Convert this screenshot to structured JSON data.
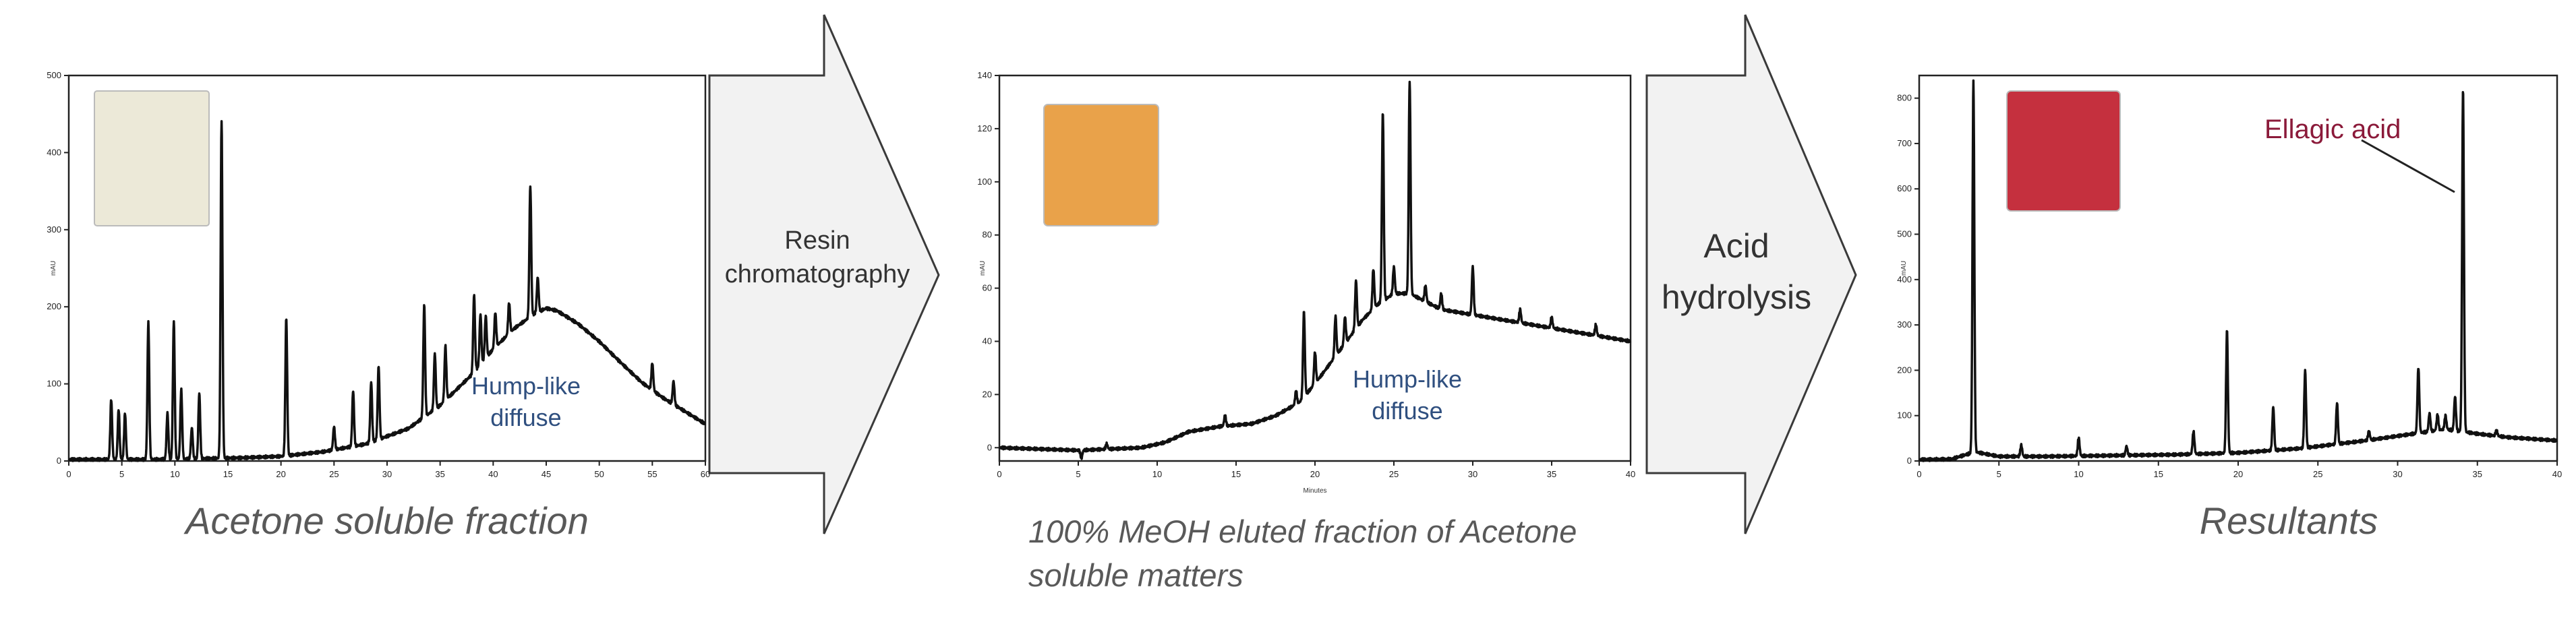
{
  "arrows": [
    {
      "label_lines": [
        "Resin",
        "chromatography"
      ]
    },
    {
      "label_lines": [
        "Acid",
        "hydrolysis"
      ]
    }
  ],
  "colors": {
    "trace": "#111111",
    "annotation_blue": "#2f4f7f",
    "annotation_red": "#8b1a3a",
    "caption": "#595959",
    "arrow_fill": "#f2f2f2",
    "arrow_stroke": "#3a3a3a"
  },
  "panels": [
    {
      "caption_lines": [
        "Acetone soluble fraction"
      ],
      "ylabel": "mAU",
      "xlabel": "",
      "annotation_lines": [
        "Hump-like",
        "diffuse"
      ],
      "annotation_color": "annotation_blue",
      "thumbnail_color": "#ece9d8",
      "chart_data": {
        "type": "line",
        "xlim": [
          0,
          60
        ],
        "ylim": [
          0,
          500
        ],
        "xticks": [
          0,
          5,
          10,
          15,
          20,
          25,
          30,
          35,
          40,
          45,
          50,
          55,
          60
        ],
        "yticks": [
          0,
          100,
          200,
          300,
          400,
          500
        ],
        "baseline": [
          [
            0,
            2
          ],
          [
            8,
            2
          ],
          [
            12,
            3
          ],
          [
            16,
            4
          ],
          [
            20,
            6
          ],
          [
            24,
            12
          ],
          [
            28,
            22
          ],
          [
            32,
            42
          ],
          [
            35,
            72
          ],
          [
            38,
            112
          ],
          [
            40,
            145
          ],
          [
            42,
            172
          ],
          [
            44,
            192
          ],
          [
            45,
            198
          ],
          [
            46,
            195
          ],
          [
            48,
            178
          ],
          [
            50,
            155
          ],
          [
            52,
            128
          ],
          [
            54,
            102
          ],
          [
            56,
            82
          ],
          [
            58,
            65
          ],
          [
            60,
            48
          ]
        ],
        "peaks": [
          [
            4,
            78
          ],
          [
            4.7,
            65
          ],
          [
            5.3,
            60
          ],
          [
            7.5,
            178
          ],
          [
            9.3,
            60
          ],
          [
            9.9,
            178
          ],
          [
            10.6,
            90
          ],
          [
            11.6,
            40
          ],
          [
            12.3,
            85
          ],
          [
            14.4,
            438
          ],
          [
            20.5,
            178
          ],
          [
            25,
            30
          ],
          [
            26.8,
            72
          ],
          [
            28.5,
            78
          ],
          [
            29.2,
            95
          ],
          [
            33.5,
            145
          ],
          [
            34.5,
            72
          ],
          [
            35.5,
            70
          ],
          [
            38.2,
            100
          ],
          [
            38.8,
            65
          ],
          [
            39.3,
            55
          ],
          [
            40.2,
            45
          ],
          [
            41.5,
            40
          ],
          [
            43.5,
            170
          ],
          [
            44.2,
            45
          ],
          [
            55,
            35
          ],
          [
            57,
            30
          ]
        ]
      }
    },
    {
      "caption_lines": [
        "100% MeOH eluted fraction of Acetone",
        "soluble matters"
      ],
      "ylabel": "mAU",
      "xlabel": "Minutes",
      "annotation_lines": [
        "Hump-like",
        "diffuse"
      ],
      "annotation_color": "annotation_blue",
      "thumbnail_color": "#e9a24a",
      "chart_data": {
        "type": "line",
        "xlim": [
          0,
          40
        ],
        "ylim": [
          -5,
          140
        ],
        "xticks": [
          0,
          5,
          10,
          15,
          20,
          25,
          30,
          35,
          40
        ],
        "yticks": [
          0,
          20,
          40,
          60,
          80,
          100,
          120,
          140
        ],
        "baseline": [
          [
            0,
            0
          ],
          [
            5,
            -1
          ],
          [
            9,
            0
          ],
          [
            10.5,
            2
          ],
          [
            12,
            6
          ],
          [
            14,
            8
          ],
          [
            16,
            9
          ],
          [
            17.5,
            12
          ],
          [
            19,
            17
          ],
          [
            20,
            24
          ],
          [
            21,
            32
          ],
          [
            22,
            40
          ],
          [
            23,
            48
          ],
          [
            24,
            54
          ],
          [
            25,
            58
          ],
          [
            26,
            58
          ],
          [
            27,
            55
          ],
          [
            28,
            52
          ],
          [
            30,
            50
          ],
          [
            32,
            48
          ],
          [
            34,
            46
          ],
          [
            36,
            44
          ],
          [
            38,
            42
          ],
          [
            40,
            40
          ]
        ],
        "peaks": [
          [
            5.2,
            -3
          ],
          [
            6.8,
            2
          ],
          [
            14.3,
            4
          ],
          [
            18.8,
            5
          ],
          [
            19.3,
            32
          ],
          [
            20,
            12
          ],
          [
            21.3,
            15
          ],
          [
            21.9,
            10
          ],
          [
            22.6,
            18
          ],
          [
            23.7,
            15
          ],
          [
            24.3,
            71
          ],
          [
            25,
            10
          ],
          [
            26,
            80
          ],
          [
            27,
            6
          ],
          [
            28,
            6
          ],
          [
            30,
            18
          ],
          [
            33,
            5
          ],
          [
            35,
            4
          ],
          [
            37.8,
            4
          ]
        ]
      }
    },
    {
      "caption_lines": [
        "Resultants"
      ],
      "ylabel": "mAU",
      "xlabel": "",
      "annotation_lines": [
        "Ellagic acid"
      ],
      "annotation_color": "annotation_red",
      "thumbnail_color": "#c5303e",
      "chart_data": {
        "type": "line",
        "xlim": [
          0,
          40
        ],
        "ylim": [
          0,
          850
        ],
        "xticks": [
          0,
          5,
          10,
          15,
          20,
          25,
          30,
          35,
          40
        ],
        "yticks": [
          0,
          100,
          200,
          300,
          400,
          500,
          600,
          700,
          800
        ],
        "baseline": [
          [
            0,
            3
          ],
          [
            2,
            4
          ],
          [
            3.5,
            20
          ],
          [
            5,
            10
          ],
          [
            8,
            10
          ],
          [
            12,
            12
          ],
          [
            16,
            14
          ],
          [
            20,
            18
          ],
          [
            24,
            28
          ],
          [
            28,
            45
          ],
          [
            31,
            60
          ],
          [
            33,
            70
          ],
          [
            35,
            60
          ],
          [
            37,
            52
          ],
          [
            40,
            45
          ]
        ],
        "peaks": [
          [
            3.4,
            820
          ],
          [
            6.4,
            25
          ],
          [
            10,
            40
          ],
          [
            13,
            20
          ],
          [
            17.2,
            50
          ],
          [
            19.3,
            270
          ],
          [
            22.2,
            95
          ],
          [
            24.2,
            170
          ],
          [
            26.2,
            90
          ],
          [
            28.2,
            20
          ],
          [
            31.3,
            145
          ],
          [
            32,
            40
          ],
          [
            32.5,
            35
          ],
          [
            33,
            30
          ],
          [
            33.6,
            75
          ],
          [
            34.1,
            755
          ],
          [
            36.2,
            12
          ]
        ]
      }
    }
  ]
}
